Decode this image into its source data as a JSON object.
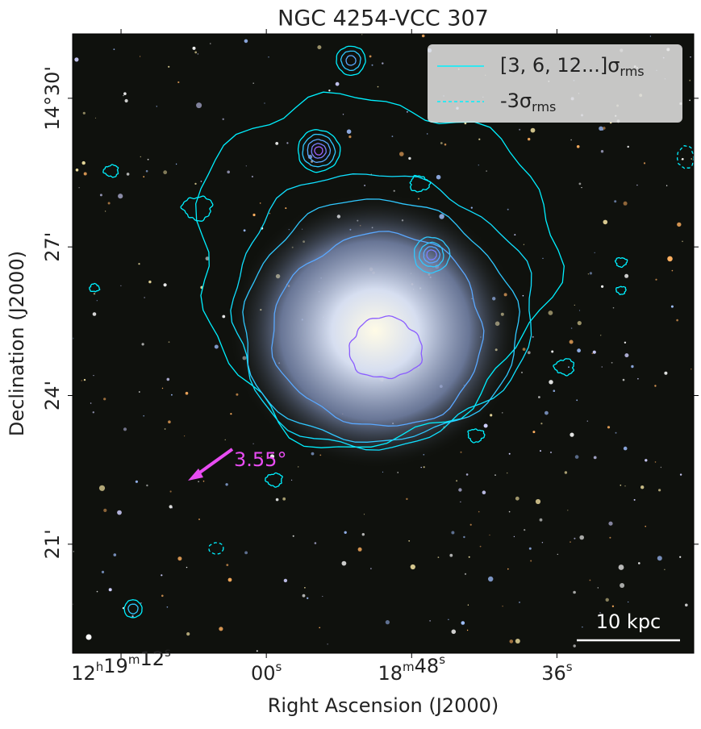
{
  "chart_data": {
    "type": "image",
    "title": "NGC 4254-VCC 307",
    "xlabel": "Right Ascension (J2000)",
    "ylabel": "Declination (J2000)",
    "xlim": [
      76,
      24.7
    ],
    "ylim": [
      18.8,
      31.3
    ],
    "xticks": [
      {
        "value": 72,
        "label": "12h19m12s"
      },
      {
        "value": 60,
        "label": "00s"
      },
      {
        "value": 48,
        "label": "18m48s"
      },
      {
        "value": 36,
        "label": "36s"
      }
    ],
    "yticks": [
      {
        "value": 30,
        "label": "14°30'"
      },
      {
        "value": 27,
        "label": "27'"
      },
      {
        "value": 24,
        "label": "24'"
      },
      {
        "value": 21,
        "label": "21'"
      }
    ],
    "legend": [
      {
        "name": "[3, 6, 12...]σ",
        "subscript": "rms",
        "color": "#00f0ff",
        "dash": false
      },
      {
        "name": "-3σ",
        "subscript": "rms",
        "color": "#00f0ff",
        "dash": true
      }
    ],
    "legend_corner": "upper right",
    "annotations": {
      "angle": "3.55°",
      "scalebar": "10 kpc"
    },
    "arrow_color": "#e84cf2"
  }
}
